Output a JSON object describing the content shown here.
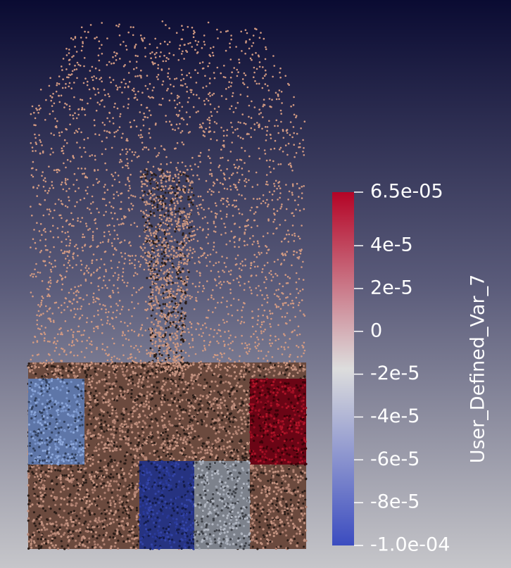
{
  "colorbar": {
    "title": "User_Defined_Var_7",
    "range": [
      -0.0001,
      6.5e-05
    ],
    "colormap": [
      "#3b4cc0",
      "#dddddd",
      "#b40426"
    ],
    "ticks": [
      {
        "value": 6.5e-05,
        "label": "6.5e-05"
      },
      {
        "value": 4e-05,
        "label": "4e-5"
      },
      {
        "value": 2e-05,
        "label": "2e-5"
      },
      0,
      {
        "value": -2e-05,
        "label": "-2e-5"
      },
      {
        "value": -4e-05,
        "label": "-4e-5"
      },
      {
        "value": -6e-05,
        "label": "-6e-5"
      },
      {
        "value": -8e-05,
        "label": "-8e-5"
      },
      {
        "value": -0.0001,
        "label": "-1.0e-04"
      }
    ]
  }
}
